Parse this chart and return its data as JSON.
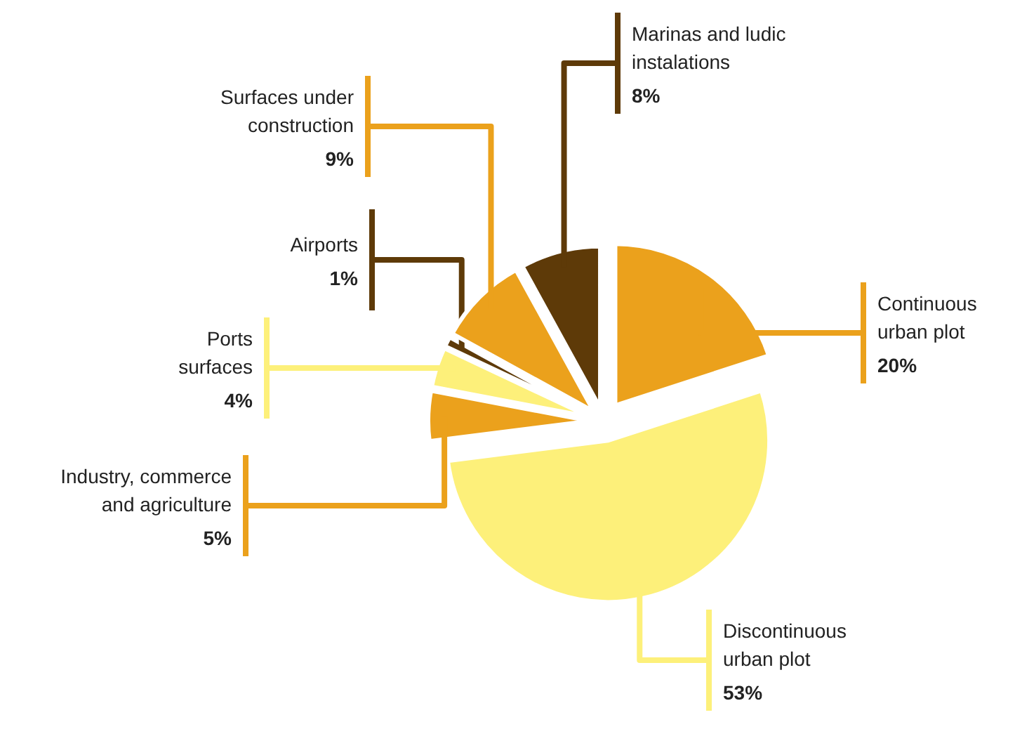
{
  "chart_data": {
    "type": "pie",
    "categories": [
      "Continuous urban plot",
      "Discontinuous urban plot",
      "Industry, commerce and agriculture",
      "Ports surfaces",
      "Airports",
      "Surfaces under construction",
      "Marinas and ludic instalations"
    ],
    "values": [
      20,
      53,
      5,
      4,
      1,
      9,
      8
    ],
    "value_labels": [
      "20%",
      "53%",
      "5%",
      "4%",
      "1%",
      "9%",
      "8%"
    ],
    "colors": [
      "#eba11c",
      "#fdf07a",
      "#eba11c",
      "#fdf07a",
      "#5e3a08",
      "#eba11c",
      "#5e3a08"
    ],
    "legend": false
  }
}
